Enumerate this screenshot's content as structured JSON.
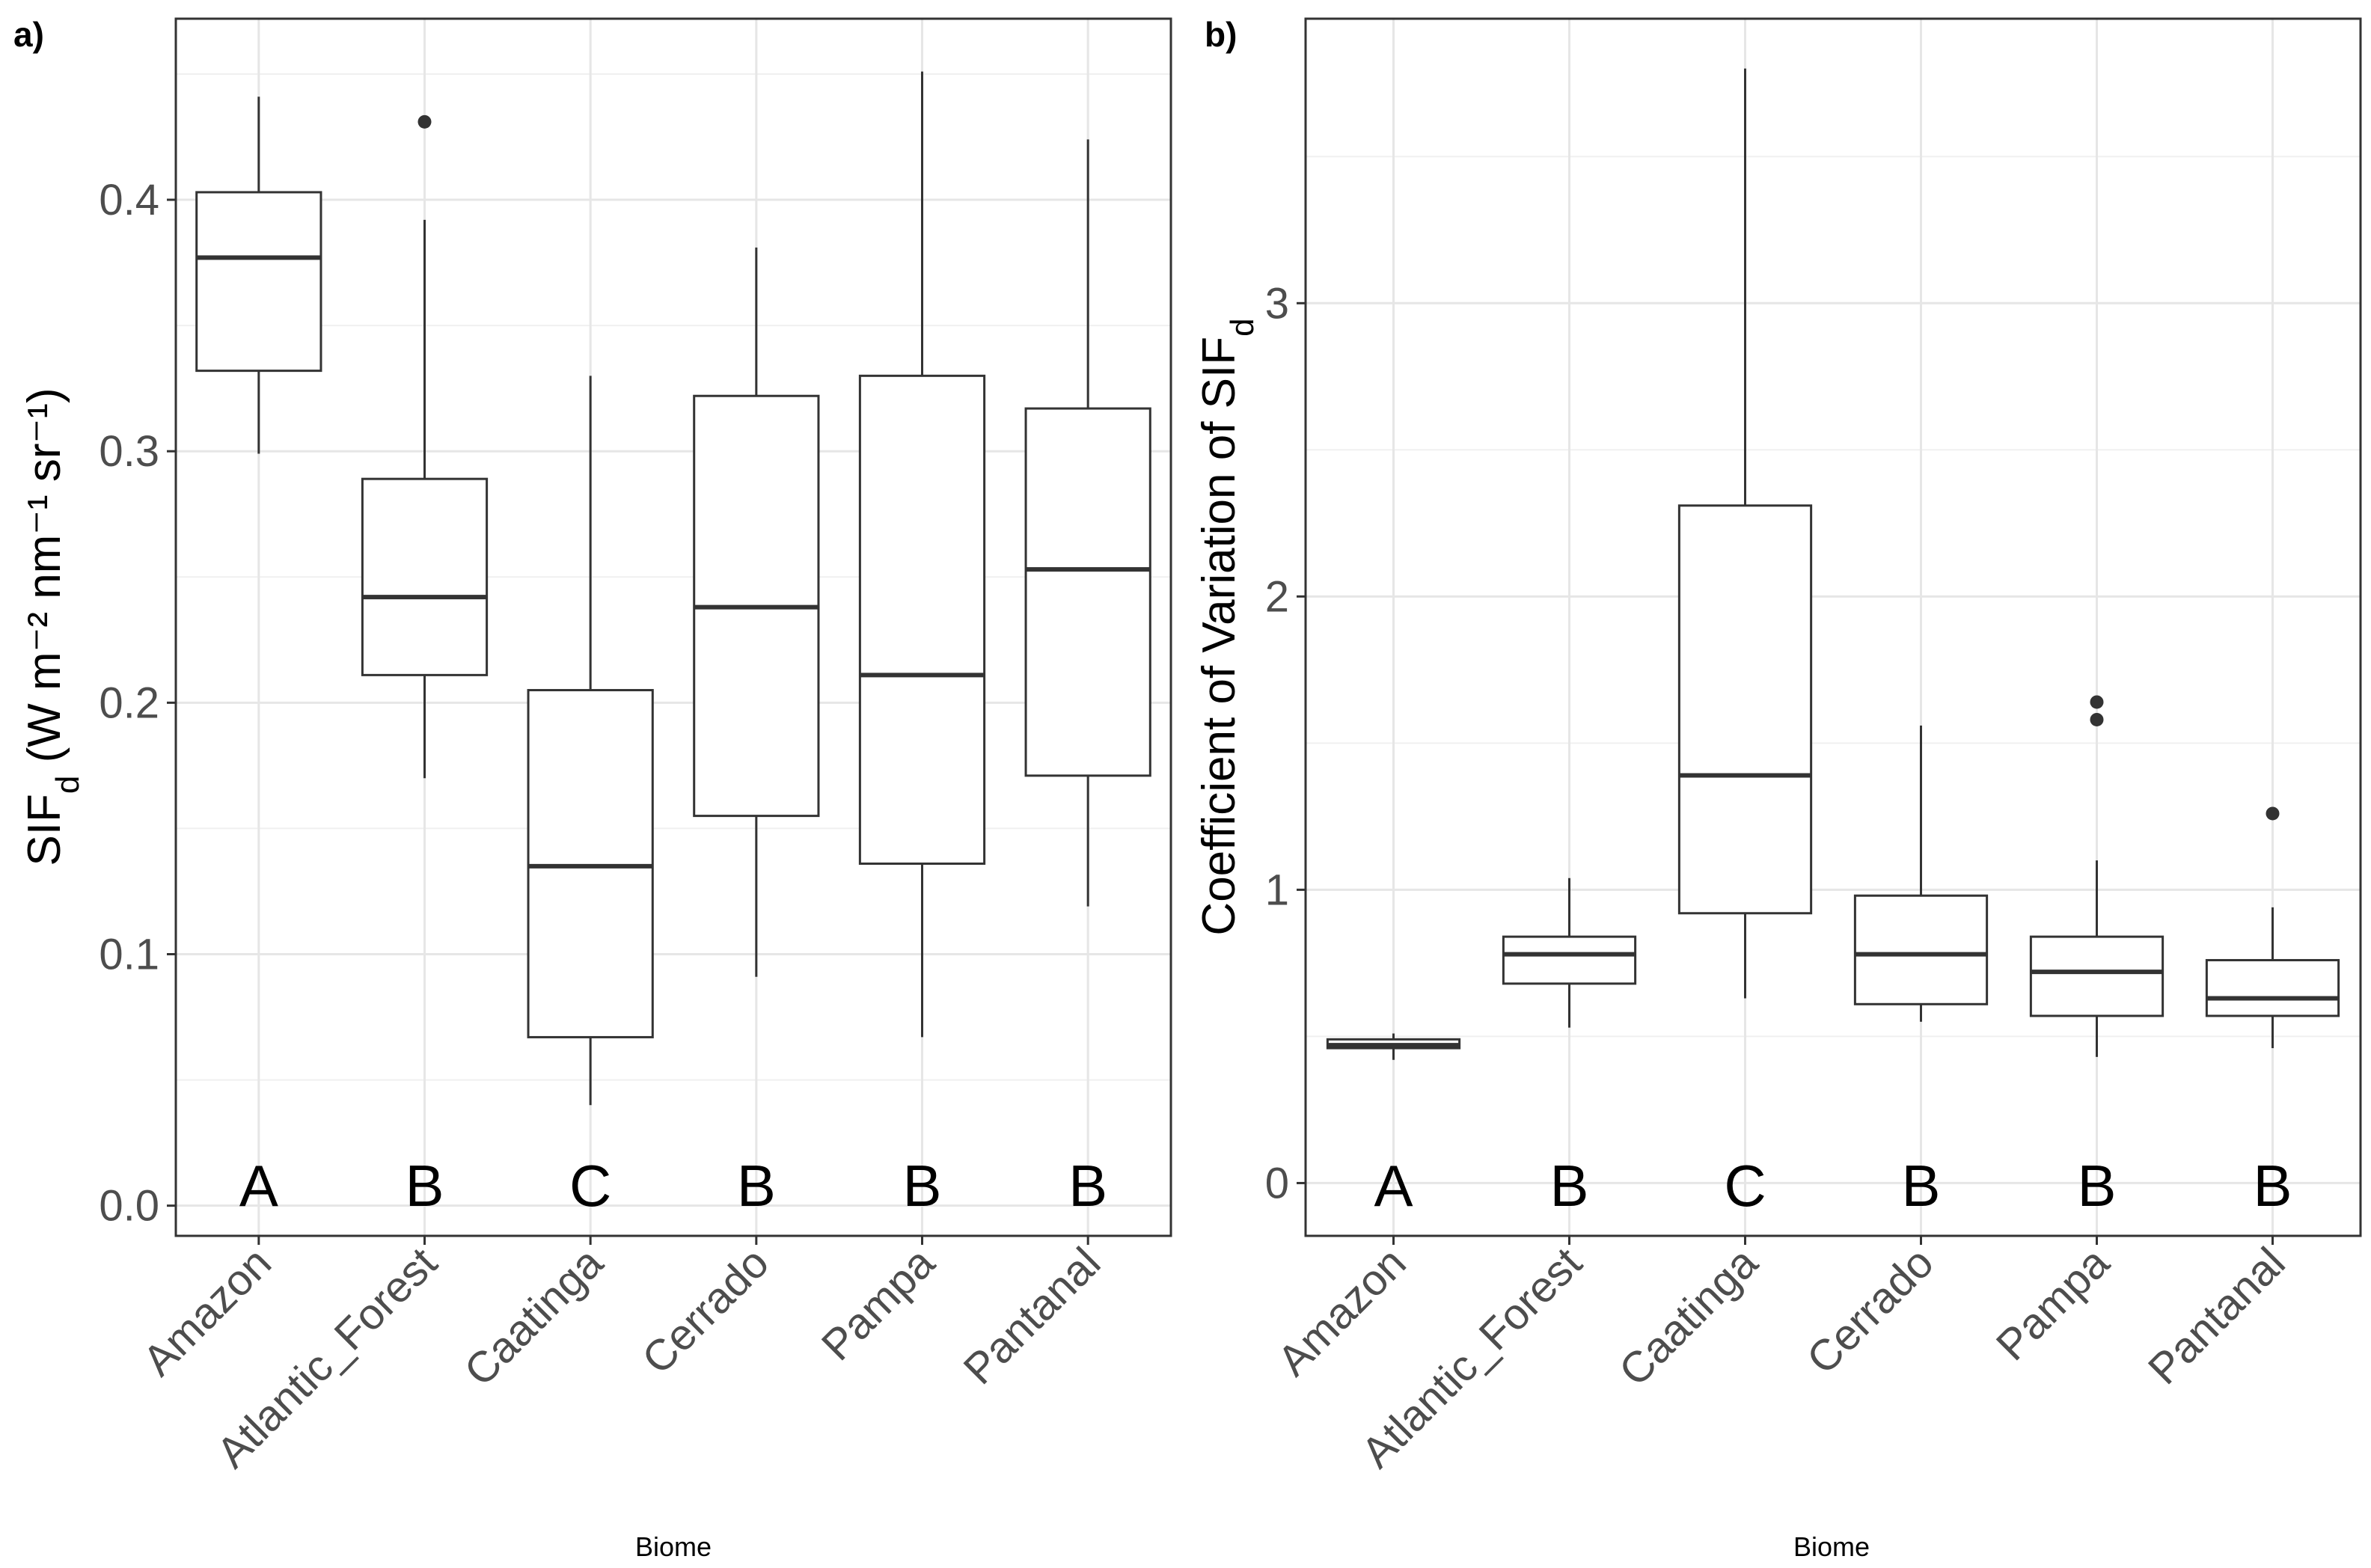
{
  "chart_data": [
    {
      "type": "box",
      "panel_label": "a)",
      "categories": [
        "Amazon",
        "Atlantic_Forest",
        "Caatinga",
        "Cerrado",
        "Pampa",
        "Pantanal"
      ],
      "xlabel": "Biome",
      "ylabel": {
        "base": "SIF",
        "subscript": "d",
        "unit": "(W m⁻² nm⁻¹ sr⁻¹)"
      },
      "ylim": [
        -0.012,
        0.472
      ],
      "yticks": [
        "0.0",
        "0.1",
        "0.2",
        "0.3",
        "0.4"
      ],
      "grid": true,
      "group_letters": [
        "A",
        "B",
        "C",
        "B",
        "B",
        "B"
      ],
      "boxes": [
        {
          "min": 0.299,
          "q1": 0.332,
          "median": 0.377,
          "q3": 0.403,
          "max": 0.441,
          "outliers": []
        },
        {
          "min": 0.17,
          "q1": 0.211,
          "median": 0.242,
          "q3": 0.289,
          "max": 0.392,
          "outliers": [
            0.431
          ]
        },
        {
          "min": 0.04,
          "q1": 0.067,
          "median": 0.135,
          "q3": 0.205,
          "max": 0.33,
          "outliers": []
        },
        {
          "min": 0.091,
          "q1": 0.155,
          "median": 0.238,
          "q3": 0.322,
          "max": 0.381,
          "outliers": []
        },
        {
          "min": 0.067,
          "q1": 0.136,
          "median": 0.211,
          "q3": 0.33,
          "max": 0.451,
          "outliers": []
        },
        {
          "min": 0.119,
          "q1": 0.171,
          "median": 0.253,
          "q3": 0.317,
          "max": 0.424,
          "outliers": []
        }
      ]
    },
    {
      "type": "box",
      "panel_label": "b)",
      "categories": [
        "Amazon",
        "Atlantic_Forest",
        "Caatinga",
        "Cerrado",
        "Pampa",
        "Pantanal"
      ],
      "xlabel": "Biome",
      "ylabel": {
        "base": "Coefficient of Variation of SIF",
        "subscript": "d",
        "unit": ""
      },
      "ylim": [
        -0.18,
        3.97
      ],
      "yticks": [
        "0",
        "1",
        "2",
        "3"
      ],
      "grid": true,
      "group_letters": [
        "A",
        "B",
        "C",
        "B",
        "B",
        "B"
      ],
      "boxes": [
        {
          "min": 0.42,
          "q1": 0.46,
          "median": 0.47,
          "q3": 0.49,
          "max": 0.51,
          "outliers": []
        },
        {
          "min": 0.53,
          "q1": 0.68,
          "median": 0.78,
          "q3": 0.84,
          "max": 1.04,
          "outliers": []
        },
        {
          "min": 0.63,
          "q1": 0.92,
          "median": 1.39,
          "q3": 2.31,
          "max": 3.8,
          "outliers": []
        },
        {
          "min": 0.55,
          "q1": 0.61,
          "median": 0.78,
          "q3": 0.98,
          "max": 1.56,
          "outliers": []
        },
        {
          "min": 0.43,
          "q1": 0.57,
          "median": 0.72,
          "q3": 0.84,
          "max": 1.1,
          "outliers": [
            1.58,
            1.64
          ]
        },
        {
          "min": 0.46,
          "q1": 0.57,
          "median": 0.63,
          "q3": 0.76,
          "max": 0.94,
          "outliers": [
            1.26
          ]
        }
      ]
    }
  ]
}
